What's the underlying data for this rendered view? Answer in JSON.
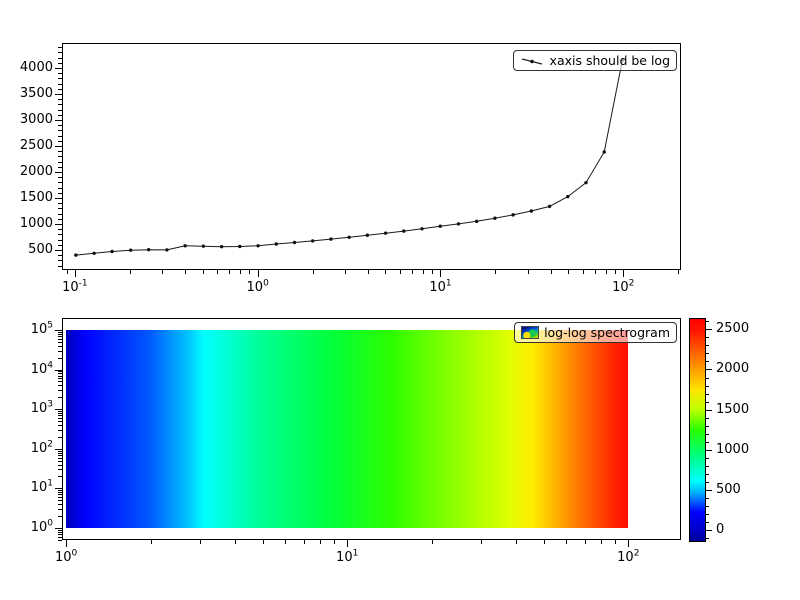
{
  "figure": {
    "background": "#ffffff",
    "line_color": "#1a1a1a",
    "marker_color": "#111111"
  },
  "legends": {
    "top": "xaxis should be log",
    "bottom": "log-log spectrogram"
  },
  "chart_data": [
    {
      "type": "line",
      "legend": "xaxis should be log",
      "xscale": "log",
      "yscale": "linear",
      "xlim": [
        0.085,
        207
      ],
      "ylim": [
        115,
        4480
      ],
      "xticks": [
        0.1,
        1,
        10,
        100
      ],
      "xtick_labels": [
        {
          "m": "10",
          "e": "-1"
        },
        {
          "m": "10",
          "e": "0"
        },
        {
          "m": "10",
          "e": "1"
        },
        {
          "m": "10",
          "e": "2"
        }
      ],
      "yticks": [
        500,
        1000,
        1500,
        2000,
        2500,
        3000,
        3500,
        4000
      ],
      "y_minor_step": 100,
      "x": [
        0.1,
        0.126,
        0.158,
        0.2,
        0.251,
        0.316,
        0.398,
        0.501,
        0.631,
        0.794,
        1.0,
        1.259,
        1.585,
        1.995,
        2.512,
        3.162,
        3.981,
        5.012,
        6.31,
        7.943,
        10.0,
        12.589,
        15.849,
        19.953,
        25.119,
        31.623,
        39.811,
        50.119,
        63.096,
        79.433,
        100.0
      ],
      "y": [
        385,
        420,
        455,
        480,
        490,
        485,
        565,
        558,
        548,
        552,
        565,
        600,
        630,
        660,
        695,
        730,
        770,
        810,
        850,
        895,
        945,
        990,
        1040,
        1100,
        1165,
        1240,
        1330,
        1520,
        1790,
        2385,
        4170
      ]
    },
    {
      "type": "heatmap",
      "legend": "log-log spectrogram",
      "xscale": "log",
      "yscale": "log",
      "xlim": [
        0.967,
        154
      ],
      "ylim": [
        0.497,
        200000
      ],
      "extent": {
        "x": [
          1,
          100
        ],
        "y": [
          1,
          100000
        ]
      },
      "xticks": [
        1,
        10,
        100
      ],
      "xtick_labels": [
        {
          "m": "10",
          "e": "0"
        },
        {
          "m": "10",
          "e": "1"
        },
        {
          "m": "10",
          "e": "2"
        }
      ],
      "yticks": [
        1,
        10,
        100,
        1000,
        10000,
        100000
      ],
      "ytick_labels": [
        {
          "m": "10",
          "e": "0"
        },
        {
          "m": "10",
          "e": "1"
        },
        {
          "m": "10",
          "e": "2"
        },
        {
          "m": "10",
          "e": "3"
        },
        {
          "m": "10",
          "e": "4"
        },
        {
          "m": "10",
          "e": "5"
        }
      ],
      "gradient": [
        {
          "pos": 0,
          "color": "#0000be"
        },
        {
          "pos": 3.5,
          "color": "#0000ff"
        },
        {
          "pos": 15,
          "color": "#005aff"
        },
        {
          "pos": 22,
          "color": "#00c8ff"
        },
        {
          "pos": 24.5,
          "color": "#00ffff"
        },
        {
          "pos": 34.5,
          "color": "#00ff96"
        },
        {
          "pos": 47,
          "color": "#00ff3c"
        },
        {
          "pos": 58,
          "color": "#2dff00"
        },
        {
          "pos": 70,
          "color": "#96ff00"
        },
        {
          "pos": 79,
          "color": "#e1ff00"
        },
        {
          "pos": 83,
          "color": "#ffeb00"
        },
        {
          "pos": 88,
          "color": "#ffa500"
        },
        {
          "pos": 93,
          "color": "#ff5f00"
        },
        {
          "pos": 98,
          "color": "#ff1e00"
        },
        {
          "pos": 100,
          "color": "#ff0f00"
        }
      ],
      "colorbar": {
        "min": 0,
        "max": 2500,
        "ticks": [
          0,
          500,
          1000,
          1500,
          2000,
          2500
        ],
        "minor_step": 100,
        "vlim": [
          -120,
          2640
        ],
        "stops": [
          {
            "pos": 0,
            "color": "#000096"
          },
          {
            "pos": 5,
            "color": "#0000c8"
          },
          {
            "pos": 13,
            "color": "#0000ff"
          },
          {
            "pos": 22,
            "color": "#00b4ff"
          },
          {
            "pos": 27,
            "color": "#00ffff"
          },
          {
            "pos": 40,
            "color": "#00ff6e"
          },
          {
            "pos": 50,
            "color": "#28ff00"
          },
          {
            "pos": 59,
            "color": "#b9ff00"
          },
          {
            "pos": 68,
            "color": "#ffe600"
          },
          {
            "pos": 77,
            "color": "#ffa000"
          },
          {
            "pos": 86,
            "color": "#ff5a00"
          },
          {
            "pos": 95,
            "color": "#ff1400"
          },
          {
            "pos": 100,
            "color": "#ff0000"
          }
        ]
      }
    }
  ]
}
